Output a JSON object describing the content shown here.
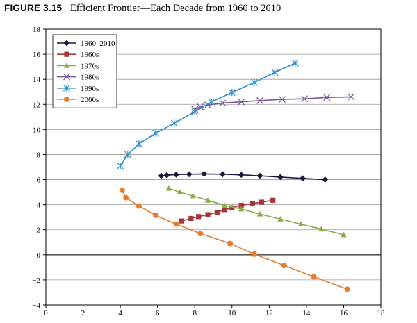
{
  "figure": {
    "number": "FIGURE 3.15",
    "title": "Efficient Frontier—Each Decade from 1960 to 2010"
  },
  "chart_data": {
    "type": "line",
    "title": "Efficient Frontier—Each Decade from 1960 to 2010",
    "xlabel": "",
    "ylabel": "",
    "xlim": [
      0,
      18
    ],
    "ylim": [
      -4,
      18
    ],
    "xticks": [
      0,
      2,
      4,
      6,
      8,
      10,
      12,
      14,
      16,
      18
    ],
    "yticks": [
      -4,
      -2,
      0,
      2,
      4,
      6,
      8,
      10,
      12,
      14,
      16,
      18
    ],
    "grid": "horizontal",
    "legend_position": "top-left",
    "series": [
      {
        "name": "1960–2010",
        "color": "#1a1a3a",
        "marker": "diamond",
        "x": [
          6.2,
          6.5,
          7.0,
          7.7,
          8.5,
          9.5,
          10.5,
          11.5,
          12.6,
          13.8,
          15.0
        ],
        "y": [
          6.3,
          6.35,
          6.4,
          6.43,
          6.45,
          6.43,
          6.38,
          6.3,
          6.2,
          6.1,
          6.0
        ]
      },
      {
        "name": "1960s",
        "color": "#a5373b",
        "marker": "square",
        "x": [
          7.3,
          7.8,
          8.2,
          8.7,
          9.2,
          9.6,
          10.0,
          10.5,
          11.1,
          11.6,
          12.2
        ],
        "y": [
          2.7,
          2.9,
          3.05,
          3.2,
          3.4,
          3.6,
          3.75,
          3.95,
          4.1,
          4.2,
          4.35
        ]
      },
      {
        "name": "1970s",
        "color": "#8aac4a",
        "marker": "triangle",
        "x": [
          6.6,
          7.2,
          7.9,
          8.7,
          9.6,
          10.5,
          11.5,
          12.6,
          13.7,
          14.8,
          16.0
        ],
        "y": [
          5.3,
          5.0,
          4.7,
          4.35,
          3.95,
          3.65,
          3.25,
          2.85,
          2.45,
          2.05,
          1.6
        ]
      },
      {
        "name": "1980s",
        "color": "#7b5895",
        "marker": "x",
        "x": [
          8.0,
          8.3,
          8.7,
          9.5,
          10.5,
          11.5,
          12.7,
          13.9,
          15.1,
          16.4
        ],
        "y": [
          11.6,
          11.8,
          11.95,
          12.1,
          12.2,
          12.3,
          12.4,
          12.45,
          12.55,
          12.6
        ]
      },
      {
        "name": "1990s",
        "color": "#2f8fcf",
        "marker": "asterisk",
        "x": [
          4.0,
          4.4,
          5.0,
          5.9,
          6.9,
          8.0,
          8.9,
          10.0,
          11.2,
          12.3,
          13.4
        ],
        "y": [
          7.1,
          8.0,
          8.85,
          9.7,
          10.5,
          11.4,
          12.2,
          12.95,
          13.75,
          14.55,
          15.3
        ]
      },
      {
        "name": "2000s",
        "color": "#e37d32",
        "marker": "circle",
        "x": [
          4.1,
          4.3,
          5.0,
          5.9,
          7.0,
          8.3,
          9.9,
          11.2,
          12.8,
          14.4,
          16.2
        ],
        "y": [
          5.15,
          4.55,
          3.9,
          3.15,
          2.45,
          1.7,
          0.9,
          0.05,
          -0.85,
          -1.75,
          -2.75
        ]
      }
    ]
  }
}
